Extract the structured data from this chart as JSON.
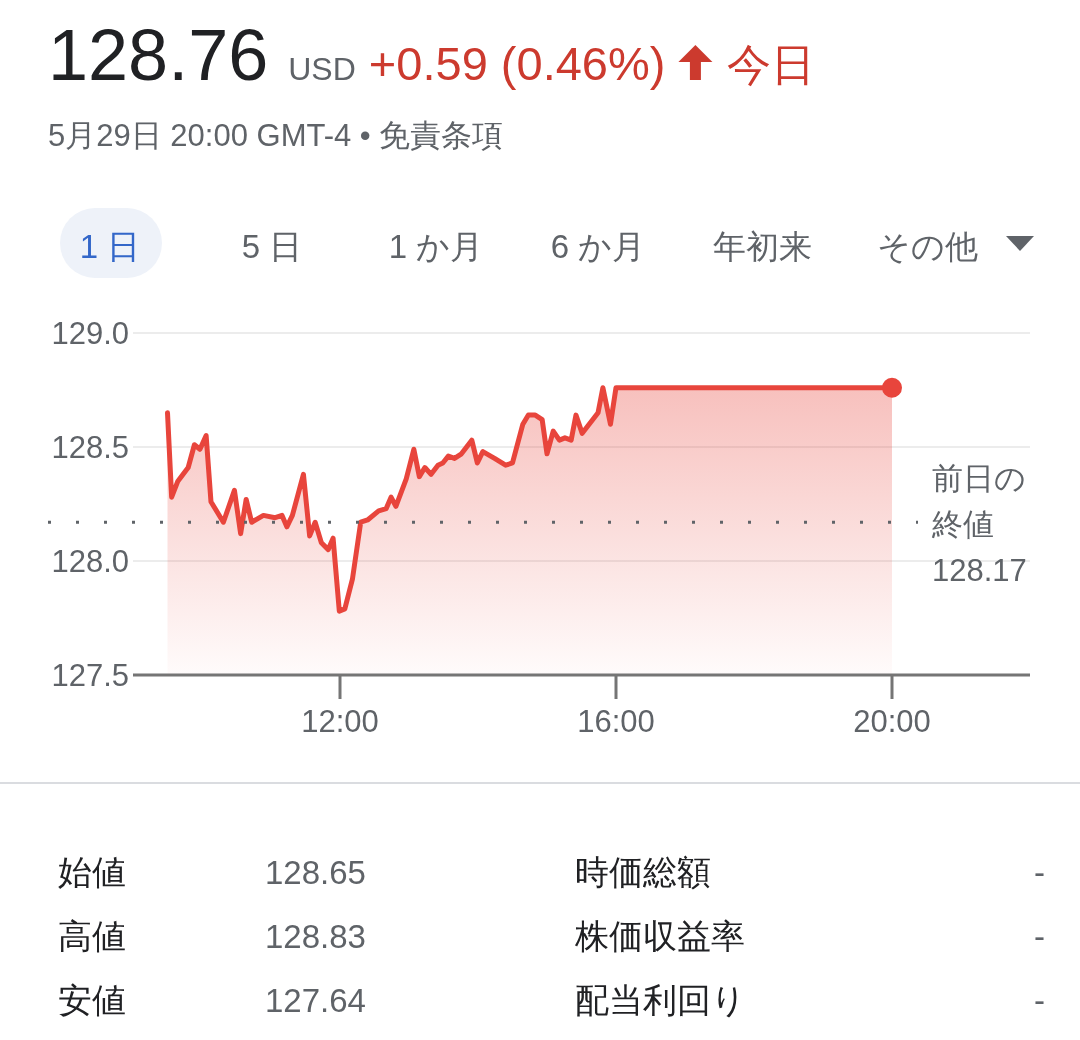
{
  "chart_data": {
    "type": "area",
    "title": "128.76 USD +0.59 (0.46%) 今日",
    "subtitle": "5月29日 20:00 GMT-4 • 免責条項",
    "series": [
      {
        "color": "#e8453c",
        "x": [
          9.5,
          9.56,
          9.65,
          9.8,
          9.89,
          9.97,
          10.06,
          10.13,
          10.31,
          10.47,
          10.56,
          10.64,
          10.72,
          10.89,
          11.06,
          11.16,
          11.23,
          11.31,
          11.47,
          11.56,
          11.64,
          11.73,
          11.83,
          11.9,
          11.99,
          12.07,
          12.18,
          12.3,
          12.4,
          12.56,
          12.67,
          12.74,
          12.81,
          12.96,
          13.07,
          13.15,
          13.23,
          13.32,
          13.42,
          13.49,
          13.57,
          13.66,
          13.76,
          13.91,
          13.99,
          14.07,
          14.24,
          14.4,
          14.5,
          14.65,
          14.73,
          14.83,
          14.93,
          15.0,
          15.09,
          15.18,
          15.26,
          15.35,
          15.42,
          15.51,
          15.74,
          15.81,
          15.92,
          16.0,
          20
        ],
        "values": [
          128.65,
          128.28,
          128.35,
          128.41,
          128.51,
          128.49,
          128.55,
          128.26,
          128.17,
          128.31,
          128.12,
          128.27,
          128.17,
          128.2,
          128.19,
          128.2,
          128.15,
          128.2,
          128.38,
          128.11,
          128.17,
          128.08,
          128.05,
          128.1,
          127.78,
          127.79,
          127.92,
          128.17,
          128.18,
          128.22,
          128.23,
          128.28,
          128.24,
          128.36,
          128.49,
          128.37,
          128.41,
          128.38,
          128.42,
          128.43,
          128.46,
          128.45,
          128.47,
          128.53,
          128.43,
          128.48,
          128.45,
          128.42,
          128.43,
          128.6,
          128.64,
          128.64,
          128.62,
          128.47,
          128.57,
          128.53,
          128.54,
          128.53,
          128.64,
          128.56,
          128.65,
          128.76,
          128.6,
          128.76,
          128.76
        ]
      },
      {
        "type": "scatter",
        "color": "#e8453c",
        "marker": "circle",
        "x": [
          20
        ],
        "values": [
          128.76
        ]
      }
    ],
    "xlim": [
      9,
      22
    ],
    "xticks": [
      {
        "value": 12,
        "label": "12:00"
      },
      {
        "value": 16,
        "label": "16:00"
      },
      {
        "value": 20,
        "label": "20:00"
      }
    ],
    "ylim": [
      127.5,
      129
    ],
    "yticks": [
      127.5,
      {
        "value": 128,
        "label": "128.0"
      },
      128.5,
      {
        "value": 129,
        "label": "129.0"
      }
    ],
    "grid": "y",
    "ref_lines": [
      {
        "axis": "y",
        "value": 128.17,
        "label": "前日の終値\n128.17",
        "line_style": "dotted",
        "color": "#5f6368"
      }
    ],
    "annotations": [
      "1 日",
      "5 日",
      "1 か月",
      "6 か月",
      "年初来",
      "その他",
      "始値",
      "128.65",
      "時価総額",
      "-",
      "高値",
      "128.83",
      "株価収益率",
      "-",
      "安値",
      "127.64",
      "配当利回り",
      "-"
    ]
  }
}
